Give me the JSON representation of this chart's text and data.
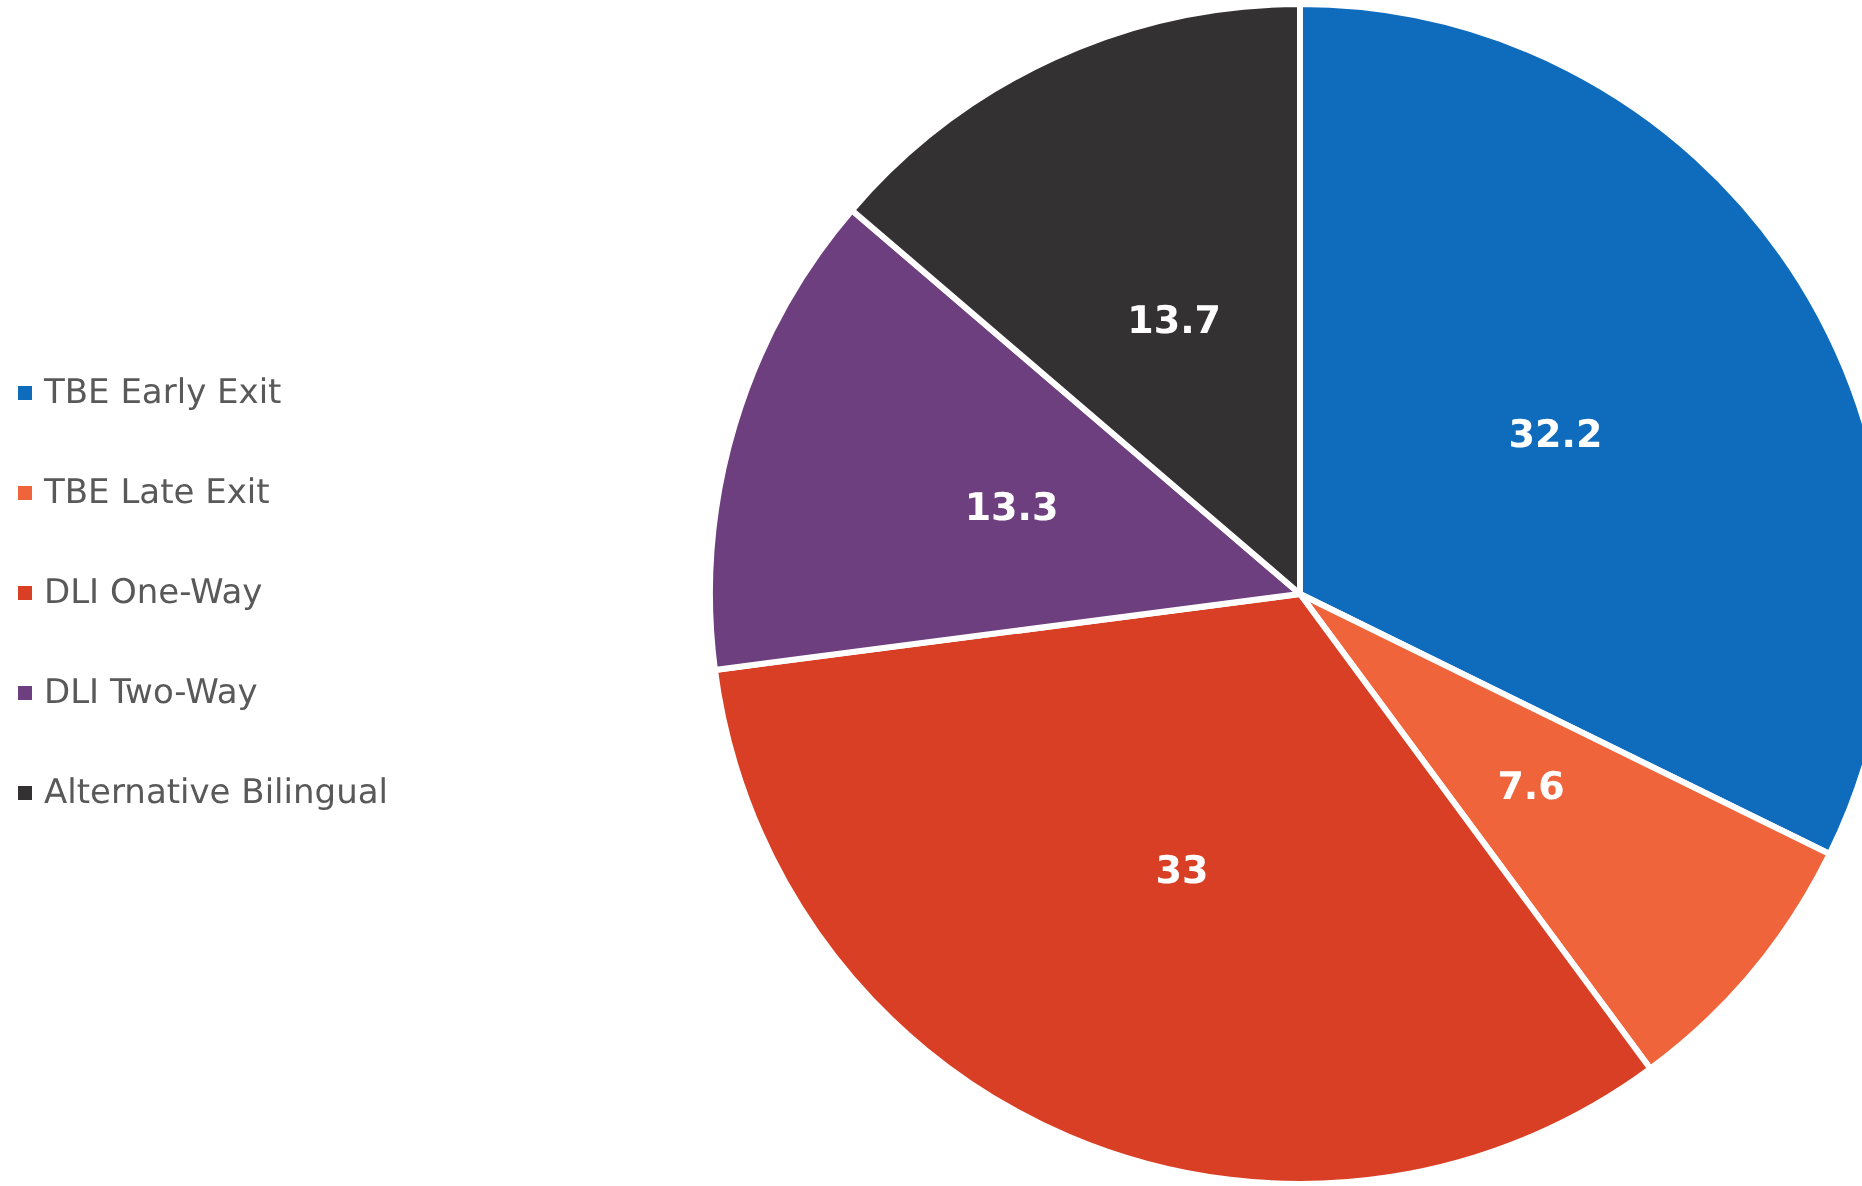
{
  "chart_data": {
    "type": "pie",
    "categories": [
      "TBE Early Exit",
      "TBE Late Exit",
      "DLI One-Way",
      "DLI Two-Way",
      "Alternative Bilingual"
    ],
    "values": [
      32.2,
      7.6,
      33,
      13.3,
      13.7
    ],
    "colors": [
      "#0f6cbd",
      "#f0643c",
      "#d93f25",
      "#6e3f7e",
      "#333131"
    ],
    "data_labels": true,
    "legend": "left"
  }
}
